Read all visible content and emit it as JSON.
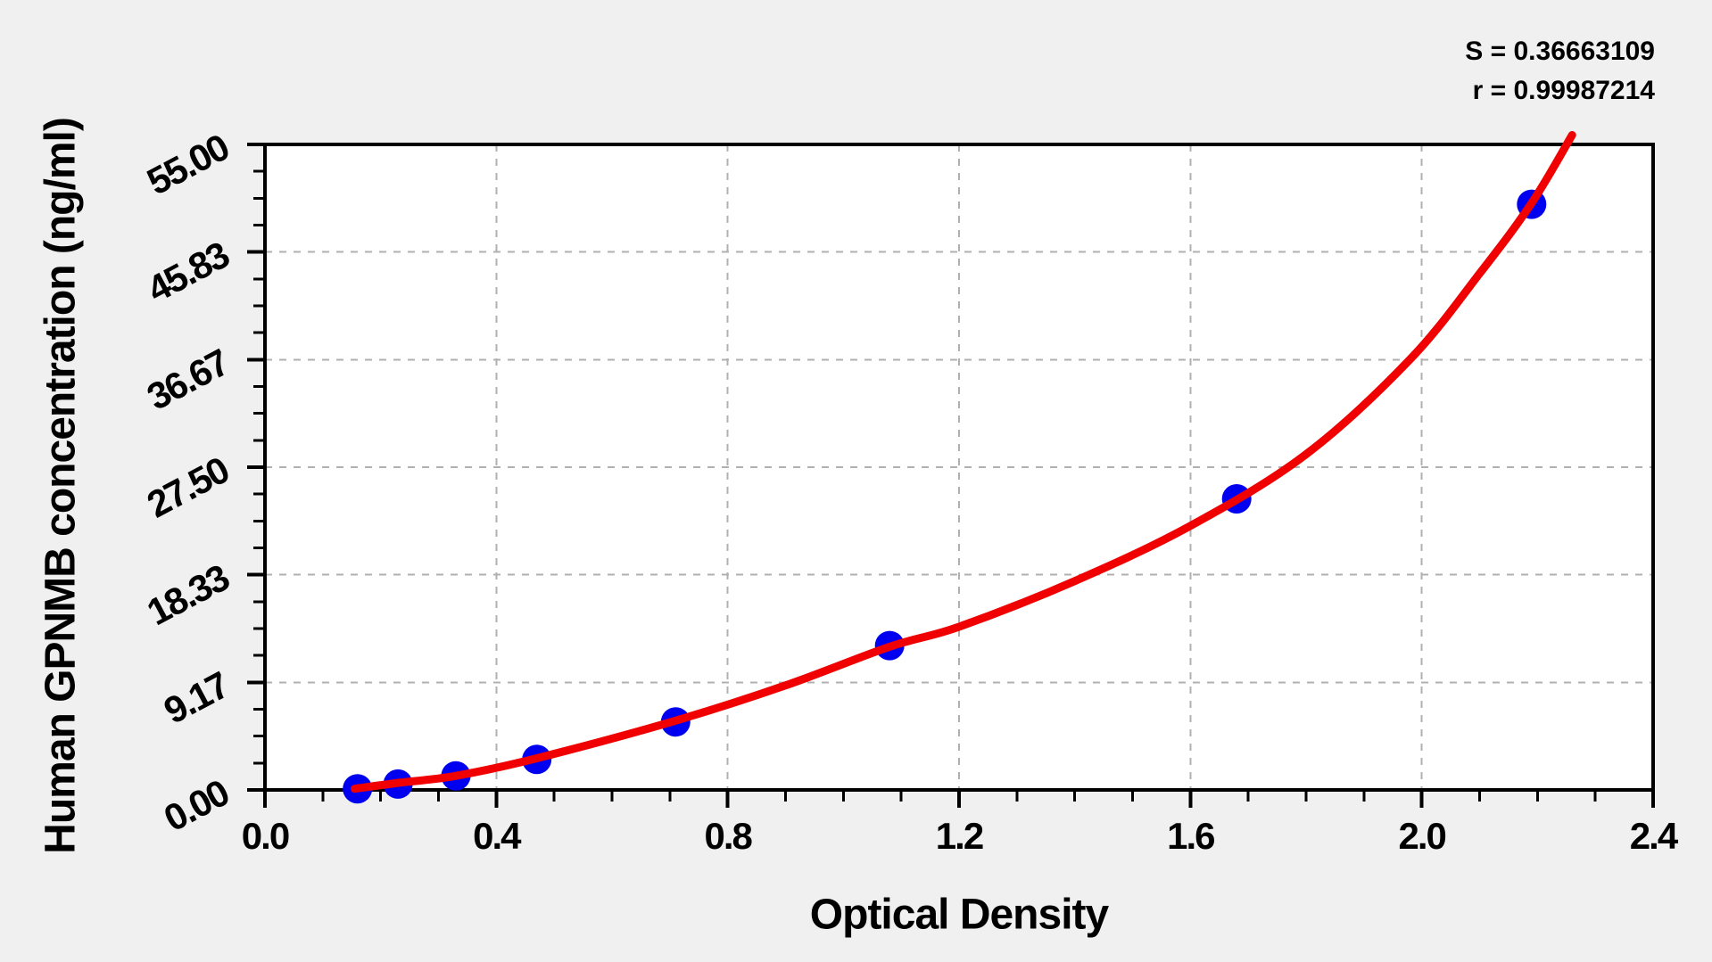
{
  "stats": {
    "s_value": "S = 0.36663109",
    "r_value": "r = 0.99987214"
  },
  "colors": {
    "background": "#f0f0f0",
    "plot_background": "#ffffff",
    "grid_line": "#b0b0b0",
    "axis": "#000000",
    "point_blue": "#0000f0",
    "curve_red": "#f00000"
  },
  "chart_data": {
    "type": "scatter",
    "title": "",
    "xlabel": "Optical Density",
    "ylabel": "Human GPNMB concentration (ng/ml)",
    "xlim": [
      0.0,
      2.4
    ],
    "ylim": [
      0.0,
      55.0
    ],
    "grid": "dashed at major ticks, both axes",
    "legend": "none",
    "annotations": [
      "S = 0.36663109",
      "r = 0.99987214"
    ],
    "x_ticks": [
      {
        "value": 0.0,
        "label": "0.0"
      },
      {
        "value": 0.4,
        "label": "0.4"
      },
      {
        "value": 0.8,
        "label": "0.8"
      },
      {
        "value": 1.2,
        "label": "1.2"
      },
      {
        "value": 1.6,
        "label": "1.6"
      },
      {
        "value": 2.0,
        "label": "2.0"
      },
      {
        "value": 2.4,
        "label": "2.4"
      }
    ],
    "y_ticks": [
      {
        "value": 0.0,
        "label": "0.00"
      },
      {
        "value": 9.17,
        "label": "9.17"
      },
      {
        "value": 18.33,
        "label": "18.33"
      },
      {
        "value": 27.5,
        "label": "27.50"
      },
      {
        "value": 36.67,
        "label": "36.67"
      },
      {
        "value": 45.83,
        "label": "45.83"
      },
      {
        "value": 55.0,
        "label": "55.00"
      }
    ],
    "minor_divisions": 4,
    "series": [
      {
        "name": "standard-points",
        "type": "scatter",
        "color": "#0000f0",
        "marker_radius_px": 16.5,
        "points": [
          [
            0.16,
            0.1
          ],
          [
            0.23,
            0.5
          ],
          [
            0.33,
            1.2
          ],
          [
            0.47,
            2.6
          ],
          [
            0.71,
            5.8
          ],
          [
            1.08,
            12.3
          ],
          [
            1.68,
            24.8
          ],
          [
            2.19,
            49.9
          ]
        ]
      },
      {
        "name": "fitted-curve",
        "type": "line",
        "color": "#f00000",
        "stroke_width_px": 9,
        "points": [
          [
            0.155,
            0.1
          ],
          [
            0.23,
            0.6
          ],
          [
            0.33,
            1.2
          ],
          [
            0.47,
            2.7
          ],
          [
            0.71,
            5.9
          ],
          [
            0.9,
            8.9
          ],
          [
            1.08,
            12.2
          ],
          [
            1.2,
            13.9
          ],
          [
            1.4,
            17.8
          ],
          [
            1.6,
            22.5
          ],
          [
            1.8,
            28.6
          ],
          [
            1.98,
            36.7
          ],
          [
            2.1,
            44.0
          ],
          [
            2.19,
            50.0
          ],
          [
            2.26,
            55.8
          ]
        ]
      }
    ]
  }
}
